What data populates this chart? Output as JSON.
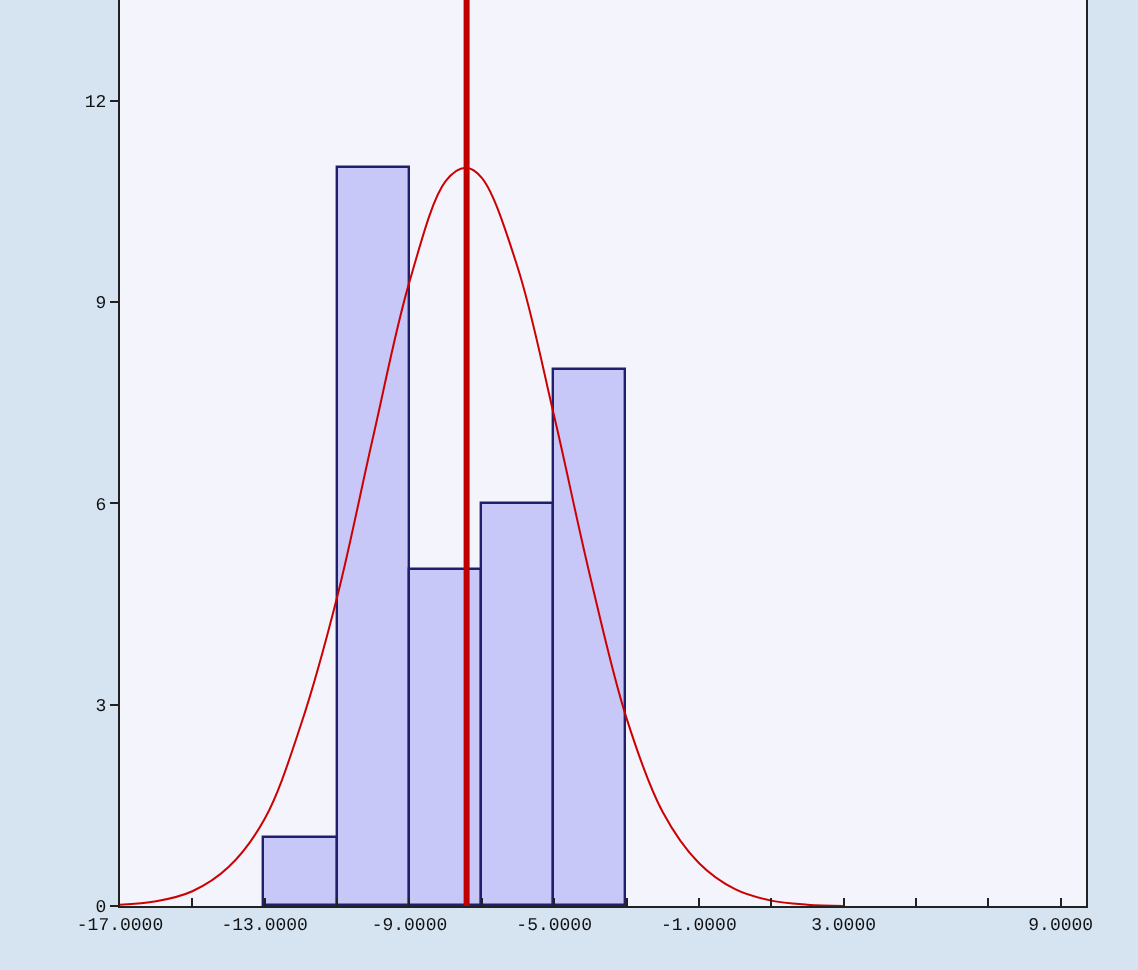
{
  "chart_data": {
    "type": "histogram",
    "bins": [
      -13,
      -11,
      -9,
      -7,
      -5,
      -3
    ],
    "values": [
      1,
      11,
      5,
      6,
      8
    ],
    "color": "#c8c8f8",
    "series": [
      {
        "type": "line",
        "color": "#cc0000",
        "x": [
          -17,
          -16,
          -15,
          -14,
          -13,
          -12,
          -11,
          -10,
          -9,
          -8,
          -7.45,
          -7,
          -6,
          -5,
          -4,
          -3,
          -2,
          -1,
          0,
          1,
          2,
          3
        ],
        "values": [
          0.02,
          0.07,
          0.22,
          0.58,
          1.3,
          2.7,
          4.6,
          7.0,
          9.3,
          10.8,
          11,
          10.85,
          9.5,
          7.3,
          4.9,
          2.8,
          1.4,
          0.64,
          0.25,
          0.08,
          0.02,
          0
        ]
      }
    ],
    "ref_lines": [
      {
        "axis": "x",
        "value": -7.42,
        "color": "#c00000",
        "line_style": "solid"
      }
    ],
    "xlim": [
      -17,
      9.7
    ],
    "xticks": [
      {
        "value": -17,
        "label": "-17.0000"
      },
      {
        "value": -15,
        "label": null
      },
      {
        "value": -13,
        "label": "-13.0000"
      },
      {
        "value": -11,
        "label": null
      },
      {
        "value": -9,
        "label": "-9.0000"
      },
      {
        "value": -7,
        "label": null
      },
      {
        "value": -5,
        "label": "-5.0000"
      },
      {
        "value": -3,
        "label": null
      },
      {
        "value": -1,
        "label": "-1.0000"
      },
      {
        "value": 1,
        "label": null
      },
      {
        "value": 3,
        "label": "3.0000"
      },
      {
        "value": 5,
        "label": null
      },
      {
        "value": 7,
        "label": null
      },
      {
        "value": 9,
        "label": "9.0000"
      }
    ],
    "ylim": [
      0,
      13.5
    ],
    "yticks": [
      0,
      3,
      6,
      9,
      12
    ],
    "grid": false
  }
}
